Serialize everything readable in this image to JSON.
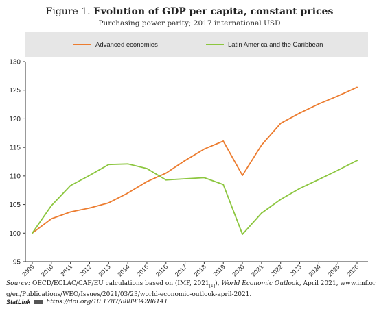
{
  "header": {
    "title_prefix": "Figure 1.",
    "title_main": "Evolution of GDP per capita, constant prices",
    "subtitle": "Purchasing power parity; 2017 international USD"
  },
  "legend": [
    {
      "label": "Advanced economies",
      "color": "#ec7c2f"
    },
    {
      "label": "Latin America and the Caribbean",
      "color": "#8cc63f"
    }
  ],
  "footer": {
    "source_label": "Source:",
    "source_text": "OECD/ECLAC/CAF/EU calculations based on (IMF, 2021",
    "source_ref": "[1]",
    "source_mid": "), ",
    "source_title": "World Economic Outlook",
    "source_date": ", April 2021, ",
    "source_url": "www.imf.org/en/Publications/WEO/Issues/2021/03/23/world-economic-outlook-april-2021",
    "source_end": ".",
    "statlink_brand": "StatLink",
    "statlink_url": "https://doi.org/10.1787/888934286141"
  },
  "chart_data": {
    "type": "line",
    "x": [
      "2009",
      "2010",
      "2011",
      "2012",
      "2013",
      "2014",
      "2015",
      "2016",
      "2017",
      "2018",
      "2019",
      "2020",
      "2021",
      "2022",
      "2023",
      "2024",
      "2025",
      "2026"
    ],
    "ylim": [
      95,
      130
    ],
    "yticks": [
      95,
      100,
      105,
      110,
      115,
      120,
      125,
      130
    ],
    "grid": false,
    "legend_position": "top",
    "series": [
      {
        "name": "Advanced economies",
        "color": "#ec7c2f",
        "values": [
          100,
          102.5,
          103.7,
          104.4,
          105.3,
          107,
          109,
          110.5,
          112.7,
          114.7,
          116.1,
          110.1,
          115.4,
          119.2,
          121,
          122.6,
          124,
          125.5
        ]
      },
      {
        "name": "Latin America and the Caribbean",
        "color": "#8cc63f",
        "values": [
          100,
          104.8,
          108.3,
          110.1,
          112,
          112.1,
          111.3,
          109.3,
          109.5,
          109.7,
          108.5,
          99.8,
          103.5,
          105.9,
          107.8,
          109.4,
          111,
          112.7
        ]
      }
    ]
  }
}
